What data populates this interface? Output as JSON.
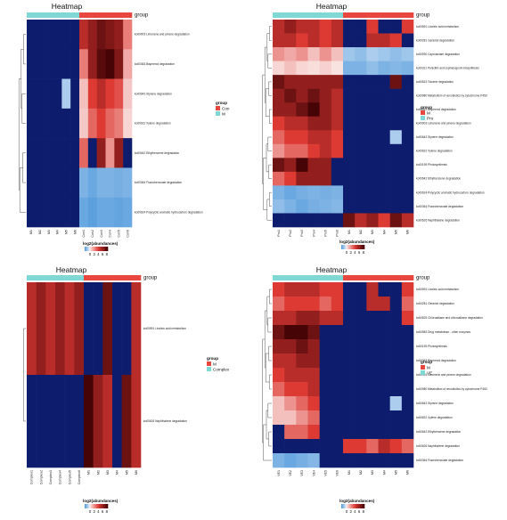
{
  "chart_data": [
    {
      "type": "heatmap",
      "title": "Heatmap",
      "group_label": "group",
      "columns": [
        "M1",
        "M2",
        "M3",
        "M4",
        "M5",
        "M6",
        "Con1",
        "Con2",
        "Con3",
        "Con4",
        "Con5",
        "Con6"
      ],
      "column_groups": [
        "M",
        "M",
        "M",
        "M",
        "M",
        "M",
        "Con",
        "Con",
        "Con",
        "Con",
        "Con",
        "Con"
      ],
      "rows": [
        "ko00903 Limonene and pinene degradation",
        "ko00363 Bisphenol degradation",
        "ko00643 Styrene degradation",
        "ko00622 Xylene degradation",
        "ko00642 Ethylbenzene degradation",
        "ko00364 Fluorobenzoate degradation",
        "ko00624 Polycyclic aromatic hydrocarbon degradation"
      ],
      "values": [
        [
          0,
          0,
          0,
          0,
          0,
          0,
          5,
          6,
          7,
          6.5,
          6,
          2.5
        ],
        [
          0,
          0,
          0,
          0,
          0,
          0,
          2.5,
          6,
          7.5,
          8,
          6.5,
          1.5
        ],
        [
          0,
          0,
          0,
          0,
          -0.8,
          0,
          1,
          4,
          5,
          4,
          3.5,
          0.8
        ],
        [
          0,
          0,
          0,
          0,
          0,
          0,
          0.8,
          3,
          4,
          3,
          2.5,
          0.5
        ],
        [
          0,
          0,
          0,
          0,
          0,
          0,
          3,
          0,
          6,
          2,
          6,
          0
        ],
        [
          0,
          0,
          0,
          0,
          0,
          0,
          -1.5,
          -1.8,
          -1.5,
          -1.5,
          -1.6,
          -1.5
        ],
        [
          0,
          0,
          0,
          0,
          0,
          0,
          -1.8,
          -2,
          -1.8,
          -1.8,
          -1.9,
          -1.8
        ]
      ],
      "legend": {
        "title": "group",
        "entries": [
          {
            "name": "Con",
            "color": "#e8473f"
          },
          {
            "name": "M",
            "color": "#80d8d4"
          }
        ]
      },
      "color_scale": {
        "title": "log2(abundances)",
        "ticks": [
          "0",
          "2",
          "4",
          "6",
          "8"
        ]
      }
    },
    {
      "type": "heatmap",
      "title": "Heatmap",
      "group_label": "group",
      "columns": [
        "Pro1",
        "Pro2",
        "Pro3",
        "Pro4",
        "Pro5",
        "Pro6",
        "M1",
        "M2",
        "M3",
        "M4",
        "M5",
        "M6"
      ],
      "column_groups": [
        "Pro",
        "Pro",
        "Pro",
        "Pro",
        "Pro",
        "Pro",
        "M",
        "M",
        "M",
        "M",
        "M",
        "M"
      ],
      "rows": [
        "ko00591 Linoleic acid metabolism",
        "ko00281 Geraniol degradation",
        "ko00930 Caprolactam degradation",
        "ko00311 Penicillin and cephalosporin biosynthesis",
        "ko00623 Toluene degradation",
        "ko00980 Metabolism of xenobiotics by cytochrome P450",
        "ko00363 Bisphenol degradation",
        "ko00903 Limonene and pinene degradation",
        "ko00643 Styrene degradation",
        "ko00622 Xylene degradation",
        "ko00195 Photosynthesis",
        "ko00642 Ethylbenzene degradation",
        "ko00624 Polycyclic aromatic hydrocarbon degradation",
        "ko00364 Fluorobenzoate degradation",
        "ko00626 Naphthalene degradation"
      ],
      "values": [
        [
          5,
          6,
          5,
          5,
          4,
          5,
          0,
          0,
          4,
          0,
          0,
          4
        ],
        [
          5,
          5,
          4,
          5,
          4,
          5,
          0,
          0,
          5,
          5,
          4,
          0
        ],
        [
          2,
          1.5,
          2,
          1,
          2,
          1,
          -1,
          -1.2,
          -0.8,
          -1,
          -1.2,
          -1
        ],
        [
          0.5,
          1,
          0.5,
          0.3,
          0.6,
          0.2,
          -1.5,
          -1.5,
          -1.2,
          -1.5,
          -1.4,
          -1.5
        ],
        [
          7,
          6,
          6,
          6,
          6,
          6,
          0,
          0,
          0,
          0,
          7,
          0
        ],
        [
          6,
          7,
          6,
          7,
          6,
          5,
          0,
          0,
          0,
          0,
          0,
          0
        ],
        [
          6,
          6,
          7,
          8,
          6,
          5,
          0,
          0,
          0,
          0,
          0,
          0
        ],
        [
          4,
          5,
          5,
          6,
          6,
          5,
          0,
          0,
          0,
          0,
          0,
          0
        ],
        [
          3,
          4,
          4,
          5,
          5,
          4,
          0,
          0,
          0,
          0,
          -0.8,
          0
        ],
        [
          2,
          3,
          3,
          4,
          5,
          4,
          0,
          0,
          0,
          0,
          0,
          0
        ],
        [
          7,
          6,
          8,
          6,
          6,
          0,
          0,
          0,
          0,
          0,
          0,
          0
        ],
        [
          3,
          4,
          6,
          6,
          6,
          0,
          0,
          0,
          0,
          0,
          0,
          0
        ],
        [
          -1.5,
          -1.8,
          -1.6,
          -1.5,
          -1.6,
          -1.5,
          0,
          0,
          0,
          0,
          0,
          0
        ],
        [
          -1.2,
          -1.5,
          -1.8,
          -1.6,
          -1.5,
          -1.4,
          0,
          0,
          0,
          0,
          0,
          0
        ],
        [
          0,
          0,
          0,
          0,
          0,
          0,
          7,
          5,
          6,
          4,
          7,
          5
        ]
      ],
      "legend": {
        "title": "group",
        "entries": [
          {
            "name": "M",
            "color": "#e8473f"
          },
          {
            "name": "Pro",
            "color": "#80d8d4"
          }
        ]
      },
      "color_scale": {
        "title": "log2(abundances)",
        "ticks": [
          "0",
          "2",
          "4",
          "6",
          "8"
        ]
      }
    },
    {
      "type": "heatmap",
      "title": "Heatmap",
      "group_label": "group",
      "columns": [
        "Complex1",
        "Complex2",
        "Complex3",
        "Complex4",
        "Complex5",
        "Complex6",
        "M1",
        "M2",
        "M3",
        "M4",
        "M5",
        "M6"
      ],
      "column_groups": [
        "Complex",
        "Complex",
        "Complex",
        "Complex",
        "Complex",
        "Complex",
        "M",
        "M",
        "M",
        "M",
        "M",
        "M"
      ],
      "rows": [
        "ko00591 Linoleic acid metabolism",
        "ko00626 Naphthalene degradation"
      ],
      "values": [
        [
          5,
          6,
          5,
          6,
          5,
          6,
          0,
          0,
          7,
          0,
          0,
          5
        ],
        [
          0,
          0,
          0,
          0,
          0,
          0,
          8,
          6,
          5,
          0,
          7,
          5
        ]
      ],
      "legend": {
        "title": "group",
        "entries": [
          {
            "name": "M",
            "color": "#e8473f"
          },
          {
            "name": "Complex",
            "color": "#80d8d4"
          }
        ]
      },
      "color_scale": {
        "title": "log2(abundances)",
        "ticks": [
          "0",
          "2",
          "4",
          "6",
          "8"
        ]
      }
    },
    {
      "type": "heatmap",
      "title": "Heatmap",
      "group_label": "group",
      "columns": [
        "VE1",
        "VE2",
        "VE3",
        "VE4",
        "VE5",
        "VE6",
        "M1",
        "M2",
        "M3",
        "M4",
        "M5",
        "M6"
      ],
      "column_groups": [
        "VE",
        "VE",
        "VE",
        "VE",
        "VE",
        "VE",
        "M",
        "M",
        "M",
        "M",
        "M",
        "M"
      ],
      "rows": [
        "ko00591 Linoleic acid metabolism",
        "ko00281 Geraniol degradation",
        "ko00625 Chloroalkane and chloroalkene degradation",
        "ko00983 Drug metabolism - other enzymes",
        "ko00195 Photosynthesis",
        "ko00363 Bisphenol degradation",
        "ko00903 Limonene and pinene degradation",
        "ko00980 Metabolism of xenobiotics by cytochrome P450",
        "ko00643 Styrene degradation",
        "ko00622 Xylene degradation",
        "ko00642 Ethylbenzene degradation",
        "ko00626 Naphthalene degradation",
        "ko00364 Fluorobenzoate degradation"
      ],
      "values": [
        [
          4,
          5,
          5,
          5,
          4,
          4,
          0,
          0,
          5,
          0,
          0,
          4
        ],
        [
          3,
          4,
          4,
          4,
          3,
          4,
          0,
          0,
          5,
          5,
          0,
          3
        ],
        [
          5,
          5,
          6,
          6,
          5,
          5,
          0,
          0,
          0,
          0,
          0,
          4
        ],
        [
          7,
          8,
          8,
          7,
          0,
          0,
          0,
          0,
          0,
          0,
          0,
          0
        ],
        [
          6,
          6,
          7,
          6,
          0,
          0,
          0,
          0,
          0,
          0,
          0,
          0
        ],
        [
          5,
          5,
          6,
          6,
          0,
          0,
          0,
          0,
          0,
          0,
          0,
          0
        ],
        [
          4,
          5,
          5,
          5,
          0,
          0,
          0,
          0,
          0,
          0,
          0,
          0
        ],
        [
          3,
          4,
          4,
          5,
          0,
          0,
          0,
          0,
          0,
          0,
          0,
          0
        ],
        [
          1,
          2,
          3,
          4,
          0,
          0,
          0,
          0,
          0,
          0,
          -0.8,
          0
        ],
        [
          1,
          1,
          2,
          3,
          0,
          0,
          0,
          0,
          0,
          0,
          0,
          0
        ],
        [
          0,
          3,
          3,
          4,
          0,
          0,
          0,
          0,
          0,
          0,
          0,
          0
        ],
        [
          0,
          0,
          0,
          0,
          0,
          0,
          4,
          4,
          3,
          5,
          4,
          3
        ],
        [
          -1.5,
          -1.8,
          -1.6,
          -1.4,
          0,
          0,
          0,
          0,
          0,
          0,
          0,
          0
        ]
      ],
      "legend": {
        "title": "group",
        "entries": [
          {
            "name": "M",
            "color": "#e8473f"
          },
          {
            "name": "VE",
            "color": "#80d8d4"
          }
        ]
      },
      "color_scale": {
        "title": "log2(abundances)",
        "ticks": [
          "0",
          "2",
          "4",
          "6",
          "8"
        ]
      }
    }
  ]
}
